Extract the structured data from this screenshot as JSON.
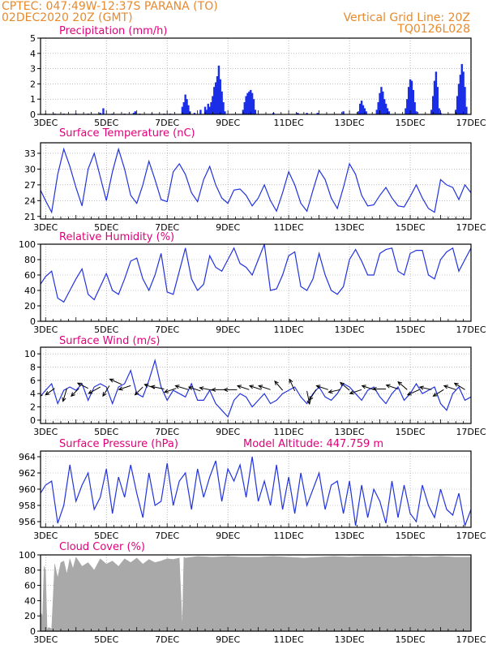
{
  "header": {
    "line1_left": "CPTEC:   047:49W-12:37S   PARANA (TO)",
    "line2_left": "02DEC2020 20Z (GMT)",
    "line2_right": "Vertical Grid Line: 20Z",
    "line3_right": "TQ0126L028"
  },
  "colors": {
    "header": "#e88a2c",
    "title": "#e0007a",
    "line": "#2233dd",
    "bar": "#1a2ee8",
    "cloud": "#a9a9a9",
    "arrow": "#000000"
  },
  "x_axis": {
    "start_day": 2.8333,
    "end_day": 17.0,
    "tick_days": [
      3,
      5,
      7,
      9,
      11,
      13,
      15,
      17
    ],
    "tick_labels": [
      "3DEC",
      "5DEC",
      "7DEC",
      "9DEC",
      "11DEC",
      "13DEC",
      "15DEC",
      "17DEC"
    ]
  },
  "chart_data": [
    {
      "id": "precip",
      "type": "bar",
      "title": "Precipitation (mm/h)",
      "ylim": [
        0,
        5
      ],
      "yticks": [
        0,
        1,
        2,
        3,
        4,
        5
      ],
      "x": [
        3.0,
        3.3,
        3.6,
        4.0,
        4.4,
        4.8,
        4.9,
        5.2,
        5.6,
        5.9,
        5.95,
        6.1,
        6.5,
        6.9,
        7.1,
        7.5,
        7.55,
        7.6,
        7.65,
        7.7,
        7.75,
        7.9,
        8.1,
        8.25,
        8.3,
        8.35,
        8.4,
        8.45,
        8.5,
        8.55,
        8.6,
        8.65,
        8.7,
        8.75,
        8.8,
        8.85,
        8.9,
        9.5,
        9.55,
        9.6,
        9.65,
        9.7,
        9.75,
        9.8,
        9.85,
        9.9,
        10.5,
        11.3,
        11.6,
        11.95,
        12.8,
        13.3,
        13.35,
        13.4,
        13.45,
        13.5,
        13.55,
        13.9,
        13.95,
        14.0,
        14.05,
        14.1,
        14.15,
        14.2,
        14.25,
        14.3,
        14.85,
        14.9,
        14.95,
        15.0,
        15.05,
        15.1,
        15.15,
        15.2,
        15.7,
        15.75,
        15.8,
        15.85,
        15.9,
        15.95,
        16.0,
        16.5,
        16.55,
        16.6,
        16.65,
        16.7,
        16.75,
        16.8,
        16.85
      ],
      "values": [
        0.05,
        0.05,
        0.05,
        0.05,
        0.05,
        0.1,
        0.4,
        0.05,
        0.05,
        0.1,
        0.2,
        0.05,
        0.05,
        0.05,
        0.05,
        0.5,
        0.8,
        1.3,
        1.0,
        0.6,
        0.2,
        0.1,
        0.3,
        0.5,
        0.3,
        0.7,
        0.5,
        0.8,
        1.2,
        1.8,
        2.1,
        2.5,
        3.2,
        2.3,
        1.5,
        0.8,
        0.2,
        0.3,
        0.8,
        1.2,
        1.4,
        1.5,
        1.6,
        1.4,
        1.0,
        0.3,
        0.1,
        0.1,
        0.1,
        0.1,
        0.2,
        0.2,
        0.7,
        0.9,
        0.6,
        0.4,
        0.2,
        0.3,
        0.8,
        1.4,
        1.8,
        1.5,
        1.0,
        0.7,
        0.4,
        0.2,
        0.4,
        1.0,
        1.8,
        2.3,
        2.2,
        1.6,
        0.8,
        0.2,
        0.3,
        1.2,
        2.2,
        2.8,
        1.8,
        0.4,
        0.1,
        0.3,
        1.2,
        2.0,
        2.6,
        3.3,
        2.8,
        1.8,
        0.5
      ]
    },
    {
      "id": "temp",
      "type": "line",
      "title": "Surface Temperature (nC)",
      "ylim": [
        20.5,
        35
      ],
      "yticks": [
        21,
        24,
        27,
        30,
        33
      ],
      "ytick_labels": [
        "21",
        "24",
        "27",
        "30",
        "33"
      ],
      "x": [
        2.83,
        3.0,
        3.2,
        3.4,
        3.6,
        3.8,
        4.0,
        4.2,
        4.4,
        4.6,
        4.8,
        5.0,
        5.2,
        5.4,
        5.6,
        5.8,
        6.0,
        6.2,
        6.4,
        6.6,
        6.8,
        7.0,
        7.2,
        7.4,
        7.6,
        7.8,
        8.0,
        8.2,
        8.4,
        8.6,
        8.8,
        9.0,
        9.2,
        9.4,
        9.6,
        9.8,
        10.0,
        10.2,
        10.4,
        10.6,
        10.8,
        11.0,
        11.2,
        11.4,
        11.6,
        11.8,
        12.0,
        12.2,
        12.4,
        12.6,
        12.8,
        13.0,
        13.2,
        13.4,
        13.6,
        13.8,
        14.0,
        14.2,
        14.4,
        14.6,
        14.8,
        15.0,
        15.2,
        15.4,
        15.6,
        15.8,
        16.0,
        16.2,
        16.4,
        16.6,
        16.8,
        17.0
      ],
      "values": [
        26.0,
        24.0,
        21.8,
        29.0,
        33.8,
        30.5,
        26.5,
        23.0,
        30.0,
        33.0,
        28.5,
        24.0,
        29.5,
        33.8,
        30.0,
        25.0,
        23.5,
        27.0,
        31.5,
        28.0,
        24.2,
        23.8,
        29.5,
        31.0,
        29.0,
        25.5,
        23.8,
        28.0,
        30.5,
        27.0,
        24.5,
        23.5,
        26.0,
        26.2,
        25.0,
        23.0,
        24.5,
        27.0,
        24.0,
        22.0,
        25.5,
        29.5,
        27.0,
        23.5,
        22.0,
        26.0,
        29.8,
        28.0,
        24.5,
        22.5,
        26.5,
        31.0,
        29.0,
        25.0,
        23.0,
        23.2,
        25.0,
        26.5,
        24.5,
        23.0,
        22.8,
        24.8,
        27.0,
        24.5,
        22.5,
        21.8,
        28.0,
        27.0,
        26.5,
        24.2,
        27.0,
        25.5
      ]
    },
    {
      "id": "rh",
      "type": "line",
      "title": "Relative Humidity (%)",
      "ylim": [
        0,
        100
      ],
      "yticks": [
        0,
        20,
        40,
        60,
        80,
        100
      ],
      "x": [
        2.83,
        3.0,
        3.2,
        3.4,
        3.6,
        3.8,
        4.0,
        4.2,
        4.4,
        4.6,
        4.8,
        5.0,
        5.2,
        5.4,
        5.6,
        5.8,
        6.0,
        6.2,
        6.4,
        6.6,
        6.8,
        7.0,
        7.2,
        7.4,
        7.6,
        7.8,
        8.0,
        8.2,
        8.4,
        8.6,
        8.8,
        9.0,
        9.2,
        9.4,
        9.6,
        9.8,
        10.0,
        10.2,
        10.4,
        10.6,
        10.8,
        11.0,
        11.2,
        11.4,
        11.6,
        11.8,
        12.0,
        12.2,
        12.4,
        12.6,
        12.8,
        13.0,
        13.2,
        13.4,
        13.6,
        13.8,
        14.0,
        14.2,
        14.4,
        14.6,
        14.8,
        15.0,
        15.2,
        15.4,
        15.6,
        15.8,
        16.0,
        16.2,
        16.4,
        16.6,
        16.8,
        17.0
      ],
      "values": [
        48.0,
        58.0,
        65.0,
        30.0,
        25.0,
        40.0,
        55.0,
        68.0,
        35.0,
        28.0,
        45.0,
        62.0,
        40.0,
        35.0,
        55.0,
        78.0,
        82.0,
        55.0,
        40.0,
        60.0,
        88.0,
        38.0,
        35.0,
        65.0,
        95.0,
        55.0,
        40.0,
        48.0,
        85.0,
        70.0,
        65.0,
        80.0,
        95.0,
        75.0,
        70.0,
        60.0,
        80.0,
        100.0,
        40.0,
        42.0,
        60.0,
        85.0,
        90.0,
        45.0,
        40.0,
        55.0,
        88.0,
        60.0,
        40.0,
        35.0,
        45.0,
        80.0,
        93.0,
        78.0,
        60.0,
        60.0,
        88.0,
        93.0,
        95.0,
        65.0,
        60.0,
        88.0,
        92.0,
        92.0,
        60.0,
        55.0,
        80.0,
        90.0,
        95.0,
        65.0,
        80.0,
        95.0
      ],
      "gridlines": false
    },
    {
      "id": "wind",
      "type": "line",
      "title": "Surface Wind (m/s)",
      "ylim": [
        -0.5,
        11
      ],
      "yticks": [
        0,
        2,
        4,
        6,
        8,
        10
      ],
      "x": [
        2.83,
        3.0,
        3.2,
        3.4,
        3.6,
        3.8,
        4.0,
        4.2,
        4.4,
        4.6,
        4.8,
        5.0,
        5.2,
        5.4,
        5.6,
        5.8,
        6.0,
        6.2,
        6.4,
        6.6,
        6.8,
        7.0,
        7.2,
        7.4,
        7.6,
        7.8,
        8.0,
        8.2,
        8.4,
        8.6,
        8.8,
        9.0,
        9.2,
        9.4,
        9.6,
        9.8,
        10.0,
        10.2,
        10.4,
        10.6,
        10.8,
        11.0,
        11.2,
        11.4,
        11.6,
        11.8,
        12.0,
        12.2,
        12.4,
        12.6,
        12.8,
        13.0,
        13.2,
        13.4,
        13.6,
        13.8,
        14.0,
        14.2,
        14.4,
        14.6,
        14.8,
        15.0,
        15.2,
        15.4,
        15.6,
        15.8,
        16.0,
        16.2,
        16.4,
        16.6,
        16.8,
        17.0
      ],
      "values": [
        3.6,
        4.5,
        5.5,
        2.5,
        4.5,
        5.0,
        4.5,
        5.5,
        3.0,
        5.0,
        5.5,
        5.0,
        2.5,
        5.0,
        5.5,
        7.5,
        4.0,
        3.5,
        6.0,
        9.0,
        5.0,
        3.0,
        4.5,
        4.0,
        3.5,
        5.5,
        3.0,
        3.0,
        4.5,
        2.5,
        1.5,
        0.5,
        3.0,
        4.0,
        3.5,
        2.0,
        3.0,
        4.0,
        2.5,
        3.0,
        4.0,
        4.5,
        5.0,
        3.5,
        2.5,
        4.0,
        5.0,
        3.5,
        3.0,
        4.0,
        5.5,
        5.0,
        4.0,
        3.0,
        4.5,
        5.0,
        3.5,
        2.5,
        4.0,
        5.0,
        3.0,
        4.0,
        5.5,
        4.0,
        4.5,
        5.0,
        2.5,
        1.5,
        4.0,
        5.0,
        3.0,
        3.5
      ],
      "arrows": {
        "x": [
          2.9,
          3.3,
          3.7,
          4.1,
          4.4,
          4.8,
          5.1,
          5.5,
          5.8,
          6.2,
          6.6,
          6.9,
          7.3,
          7.7,
          8.1,
          8.5,
          8.9,
          9.3,
          9.7,
          10.1,
          10.4,
          10.8,
          11.2,
          11.6,
          11.9,
          12.3,
          12.7,
          13.0,
          13.4,
          13.8,
          14.2,
          14.6,
          14.9,
          15.3,
          15.7,
          16.1,
          16.5,
          16.8
        ],
        "y": [
          3.8,
          4.8,
          4.8,
          4.8,
          4.8,
          5.0,
          5.2,
          5.4,
          5.2,
          5.0,
          4.8,
          4.7,
          4.8,
          4.6,
          4.4,
          4.5,
          4.6,
          4.6,
          4.6,
          4.6,
          4.6,
          4.5,
          4.4,
          4.4,
          4.6,
          4.6,
          4.6,
          4.5,
          4.6,
          4.6,
          4.7,
          4.7,
          4.6,
          4.6,
          4.6,
          4.6,
          4.6,
          4.6
        ],
        "u": [
          -0.8,
          -0.7,
          -0.3,
          -0.6,
          -0.8,
          -0.9,
          -0.5,
          -0.9,
          -0.9,
          -0.6,
          -0.8,
          -1.0,
          -0.9,
          -1.0,
          -0.9,
          -1.0,
          -1.0,
          -1.0,
          -0.9,
          -0.9,
          -0.9,
          -0.6,
          -0.4,
          0.2,
          -0.5,
          -0.9,
          -0.9,
          -0.7,
          -0.9,
          -0.9,
          -1.0,
          -0.9,
          -0.7,
          -0.9,
          -0.9,
          -0.8,
          -0.9,
          -0.8
        ],
        "v": [
          -0.4,
          -0.5,
          -1.0,
          -0.6,
          0.4,
          -0.5,
          -0.8,
          0.4,
          -0.3,
          -0.6,
          0.3,
          0.2,
          -0.3,
          0.3,
          0.3,
          0.2,
          0.0,
          0.0,
          0.3,
          0.3,
          0.3,
          0.7,
          0.9,
          -1.0,
          -0.8,
          0.3,
          -0.2,
          0.6,
          -0.3,
          0.3,
          0.0,
          0.3,
          0.6,
          -0.4,
          0.2,
          -0.5,
          0.3,
          0.5
        ]
      }
    },
    {
      "id": "press",
      "type": "line",
      "title": "Surface Pressure (hPa)",
      "annotation": "Model Altitude: 447.759  m",
      "ylim": [
        955.3,
        964.7
      ],
      "yticks": [
        956,
        958,
        960,
        962,
        964
      ],
      "ytick_labels": [
        "956",
        "958",
        "960",
        "962",
        "964"
      ],
      "x": [
        2.83,
        3.0,
        3.2,
        3.4,
        3.6,
        3.8,
        4.0,
        4.2,
        4.4,
        4.6,
        4.8,
        5.0,
        5.2,
        5.4,
        5.6,
        5.8,
        6.0,
        6.2,
        6.4,
        6.6,
        6.8,
        7.0,
        7.2,
        7.4,
        7.6,
        7.8,
        8.0,
        8.2,
        8.4,
        8.6,
        8.8,
        9.0,
        9.2,
        9.4,
        9.6,
        9.8,
        10.0,
        10.2,
        10.4,
        10.6,
        10.8,
        11.0,
        11.2,
        11.4,
        11.6,
        11.8,
        12.0,
        12.2,
        12.4,
        12.6,
        12.8,
        13.0,
        13.2,
        13.4,
        13.6,
        13.8,
        14.0,
        14.2,
        14.4,
        14.6,
        14.8,
        15.0,
        15.2,
        15.4,
        15.6,
        15.8,
        16.0,
        16.2,
        16.4,
        16.6,
        16.8,
        17.0
      ],
      "values": [
        959.5,
        960.5,
        961.0,
        955.8,
        958.0,
        963.0,
        958.5,
        960.5,
        962.0,
        957.5,
        959.0,
        962.5,
        957.0,
        961.5,
        959.0,
        963.0,
        959.5,
        956.5,
        962.0,
        958.0,
        958.5,
        963.2,
        958.0,
        961.0,
        962.0,
        957.5,
        962.5,
        959.0,
        961.5,
        963.5,
        958.5,
        962.5,
        961.0,
        963.0,
        959.0,
        964.0,
        958.5,
        961.0,
        958.0,
        963.0,
        957.5,
        961.5,
        957.0,
        962.0,
        958.0,
        960.0,
        962.0,
        957.5,
        960.5,
        961.0,
        957.0,
        961.0,
        955.5,
        960.5,
        956.5,
        960.0,
        958.5,
        955.8,
        961.0,
        956.5,
        960.5,
        957.0,
        956.0,
        960.5,
        958.0,
        956.5,
        960.0,
        957.5,
        956.8,
        959.5,
        955.5,
        957.5
      ]
    },
    {
      "id": "cloud",
      "type": "area",
      "title": "Cloud Cover (%)",
      "ylim": [
        0,
        100
      ],
      "yticks": [
        0,
        20,
        40,
        60,
        80,
        100
      ],
      "x": [
        2.83,
        2.9,
        2.95,
        3.0,
        3.05,
        3.1,
        3.2,
        3.3,
        3.4,
        3.5,
        3.6,
        3.7,
        3.8,
        3.9,
        4.0,
        4.2,
        4.4,
        4.6,
        4.8,
        5.0,
        5.2,
        5.4,
        5.6,
        5.8,
        6.0,
        6.2,
        6.4,
        6.6,
        6.8,
        7.0,
        7.2,
        7.4,
        7.5,
        7.55,
        7.6,
        7.8,
        8.0,
        8.5,
        9.0,
        9.5,
        10.0,
        10.5,
        11.0,
        11.5,
        12.0,
        12.5,
        13.0,
        13.5,
        14.0,
        14.5,
        15.0,
        15.5,
        16.0,
        16.5,
        17.0
      ],
      "values": [
        25.0,
        20.0,
        85.0,
        80.0,
        2.0,
        5.0,
        3.0,
        88.0,
        70.0,
        90.0,
        92.0,
        75.0,
        95.0,
        82.0,
        97.0,
        85.0,
        90.0,
        80.0,
        95.0,
        88.0,
        92.0,
        85.0,
        95.0,
        90.0,
        96.0,
        88.0,
        94.0,
        90.0,
        92.0,
        95.0,
        94.0,
        96.0,
        5.0,
        97.0,
        96.0,
        97.0,
        98.0,
        97.0,
        98.0,
        97.0,
        97.0,
        98.0,
        97.0,
        96.0,
        97.0,
        98.0,
        97.0,
        98.0,
        98.0,
        97.0,
        98.0,
        97.0,
        98.0,
        97.0,
        97.0
      ]
    }
  ]
}
